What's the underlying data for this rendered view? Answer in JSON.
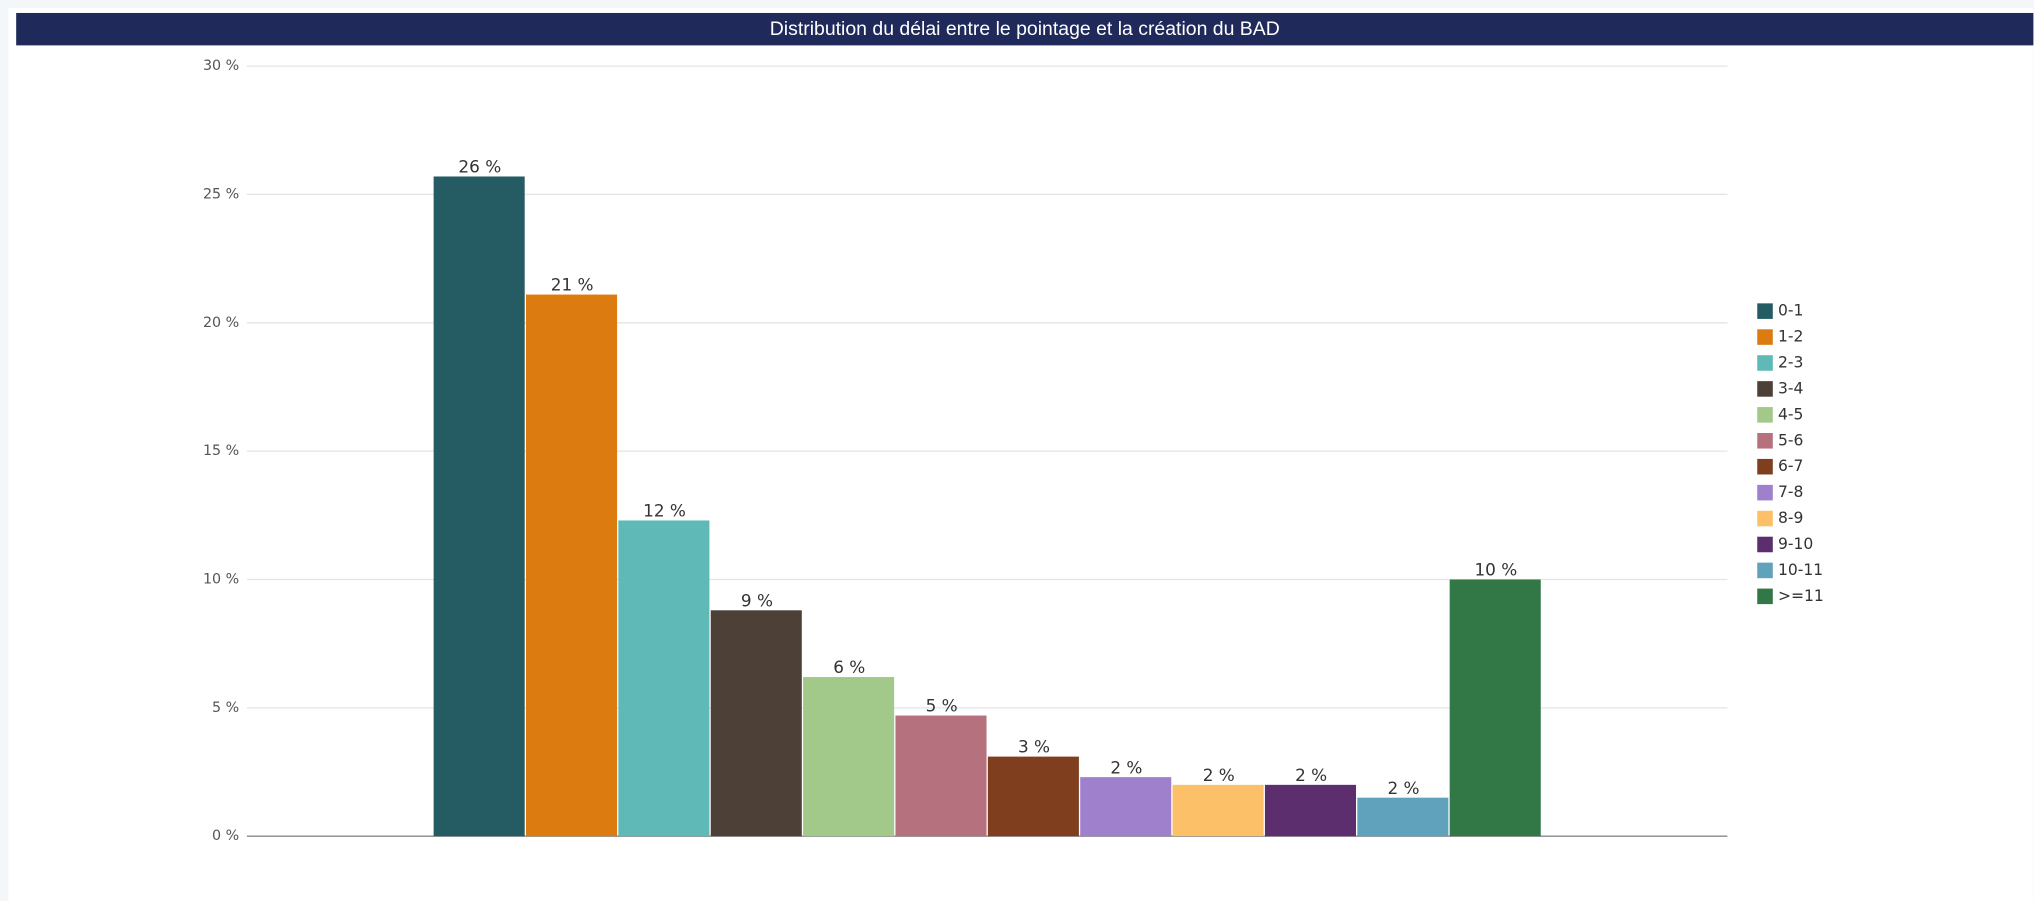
{
  "chart_data": {
    "type": "bar",
    "title": "Distribution du délai entre le pointage et la création du BAD",
    "series": [
      {
        "name": "0-1",
        "color": "#255c63",
        "values": [
          25.7
        ],
        "value_labels": [
          "26 %"
        ]
      },
      {
        "name": "1-2",
        "color": "#dc7c10",
        "values": [
          21.1
        ],
        "value_labels": [
          "21 %"
        ]
      },
      {
        "name": "2-3",
        "color": "#5fb9b6",
        "values": [
          12.3
        ],
        "value_labels": [
          "12 %"
        ]
      },
      {
        "name": "3-4",
        "color": "#4d4037",
        "values": [
          8.8
        ],
        "value_labels": [
          "9 %"
        ]
      },
      {
        "name": "4-5",
        "color": "#a2c98a",
        "values": [
          6.2
        ],
        "value_labels": [
          "6 %"
        ]
      },
      {
        "name": "5-6",
        "color": "#b6717e",
        "values": [
          4.7
        ],
        "value_labels": [
          "5 %"
        ]
      },
      {
        "name": "6-7",
        "color": "#7f3f1e",
        "values": [
          3.1
        ],
        "value_labels": [
          "3 %"
        ]
      },
      {
        "name": "7-8",
        "color": "#9e80cc",
        "values": [
          2.3
        ],
        "value_labels": [
          "2 %"
        ]
      },
      {
        "name": "8-9",
        "color": "#fbc068",
        "values": [
          2.0
        ],
        "value_labels": [
          "2 %"
        ]
      },
      {
        "name": "9-10",
        "color": "#5c2e6e",
        "values": [
          2.0
        ],
        "value_labels": [
          "2 %"
        ]
      },
      {
        "name": "10-11",
        "color": "#60a2bc",
        "values": [
          1.5
        ],
        "value_labels": [
          "2 %"
        ]
      },
      {
        "name": ">=11",
        "color": "#327847",
        "values": [
          10.0
        ],
        "value_labels": [
          "10 %"
        ]
      }
    ],
    "ylim": [
      0,
      30
    ],
    "yticks": [
      {
        "value": 0,
        "label": "0 %"
      },
      {
        "value": 5,
        "label": "5 %"
      },
      {
        "value": 10,
        "label": "10 %"
      },
      {
        "value": 15,
        "label": "15 %"
      },
      {
        "value": 20,
        "label": "20 %"
      },
      {
        "value": 25,
        "label": "25 %"
      },
      {
        "value": 30,
        "label": "30 %"
      }
    ],
    "grid": true,
    "legend": "right"
  }
}
